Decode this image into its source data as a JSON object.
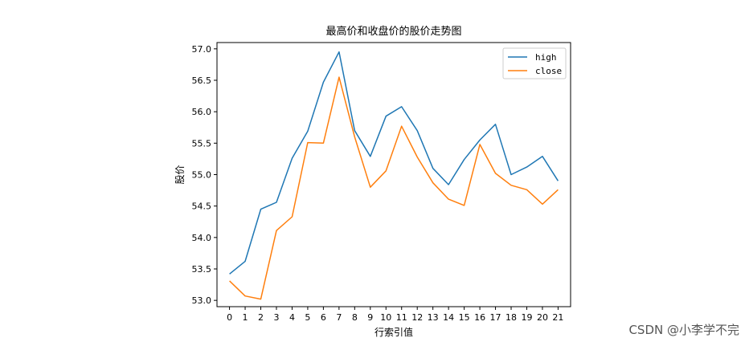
{
  "chart_data": {
    "type": "line",
    "title": "最高价和收盘价的股价走势图",
    "xlabel": "行索引值",
    "ylabel": "股价",
    "x": [
      0,
      1,
      2,
      3,
      4,
      5,
      6,
      7,
      8,
      9,
      10,
      11,
      12,
      13,
      14,
      15,
      16,
      17,
      18,
      19,
      20,
      21
    ],
    "xlim": [
      -0.8,
      21.8
    ],
    "ylim": [
      52.9,
      57.1
    ],
    "yticks": [
      53.0,
      53.5,
      54.0,
      54.5,
      55.0,
      55.5,
      56.0,
      56.5,
      57.0
    ],
    "grid": false,
    "legend_position": "top-right",
    "series": [
      {
        "name": "high",
        "color": "#1f77b4",
        "values": [
          53.42,
          53.62,
          54.45,
          54.56,
          55.26,
          55.69,
          56.47,
          56.95,
          55.7,
          55.29,
          55.93,
          56.08,
          55.7,
          55.1,
          54.84,
          55.24,
          55.55,
          55.8,
          55.0,
          55.12,
          55.29,
          54.9
        ]
      },
      {
        "name": "close",
        "color": "#ff7f0e",
        "values": [
          53.31,
          53.07,
          53.02,
          54.11,
          54.33,
          55.51,
          55.5,
          56.55,
          55.6,
          54.8,
          55.06,
          55.77,
          55.28,
          54.87,
          54.61,
          54.51,
          55.48,
          55.02,
          54.83,
          54.76,
          54.53,
          54.76
        ]
      }
    ]
  },
  "watermark": "CSDN @小李学不完"
}
